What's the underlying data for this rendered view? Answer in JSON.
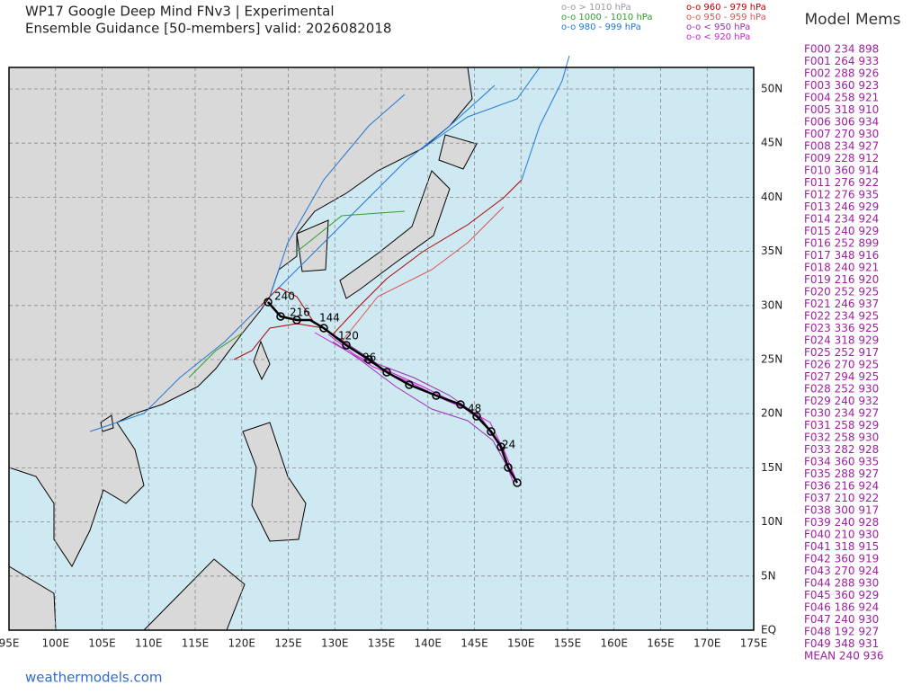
{
  "header": {
    "title": "WP17 Google Deep Mind FNv3 | Experimental",
    "subtitle": "Ensemble Guidance [50-members] valid: 2026082018"
  },
  "legend": [
    {
      "text": "o-o > 1010 hPa",
      "color": "#9a9a9a"
    },
    {
      "text": "o-o 1000 - 1010 hPa",
      "color": "#2ca02c"
    },
    {
      "text": "o-o 980 - 999 hPa",
      "color": "#1f77d4"
    },
    {
      "text": "o-o 960 - 979 hPa",
      "color": "#b00000"
    },
    {
      "text": "o-o 950 - 959 hPa",
      "color": "#e05050"
    },
    {
      "text": "o-o < 950 hPa",
      "color": "#9b30b0"
    },
    {
      "text": "o-o < 920 hPa",
      "color": "#d020d0"
    }
  ],
  "members": {
    "title": "Model Mems",
    "color": "#a020a0",
    "items": [
      "F000 234 898",
      "F001 264 933",
      "F002 288 926",
      "F003 360 923",
      "F004 258 921",
      "F005 318 910",
      "F006 306 934",
      "F007 270 930",
      "F008 234 927",
      "F009 228 912",
      "F010 360 914",
      "F011 276 922",
      "F012 276 935",
      "F013 246 929",
      "F014 234 924",
      "F015 240 929",
      "F016 252 899",
      "F017 348 916",
      "F018 240 921",
      "F019 216 920",
      "F020 252 925",
      "F021 246 937",
      "F022 234 925",
      "F023 336 925",
      "F024 318 929",
      "F025 252 917",
      "F026 270 925",
      "F027 294 925",
      "F028 252 930",
      "F029 240 932",
      "F030 234 927",
      "F031 258 929",
      "F032 258 930",
      "F033 282 928",
      "F034 360 935",
      "F035 288 927",
      "F036 216 924",
      "F037 210 922",
      "F038 300 917",
      "F039 240 928",
      "F040 210 930",
      "F041 318 915",
      "F042 360 919",
      "F043 270 924",
      "F044 288 930",
      "F045 360 929",
      "F046 186 924",
      "F047 240 930",
      "F048 192 927",
      "F049 348 931",
      "MEAN 240 936"
    ]
  },
  "map": {
    "lon_labels": [
      "95E",
      "100E",
      "105E",
      "110E",
      "115E",
      "120E",
      "125E",
      "130E",
      "135E",
      "140E",
      "145E",
      "150E",
      "155E",
      "160E",
      "165E",
      "170E",
      "175E"
    ],
    "lat_labels": [
      "EQ",
      "5N",
      "10N",
      "15N",
      "20N",
      "25N",
      "30N",
      "35N",
      "40N",
      "45N",
      "50N"
    ],
    "track_labels": [
      "240",
      "216",
      "144",
      "120",
      "96",
      "48",
      "24"
    ]
  },
  "footer": "weathermodels.com"
}
